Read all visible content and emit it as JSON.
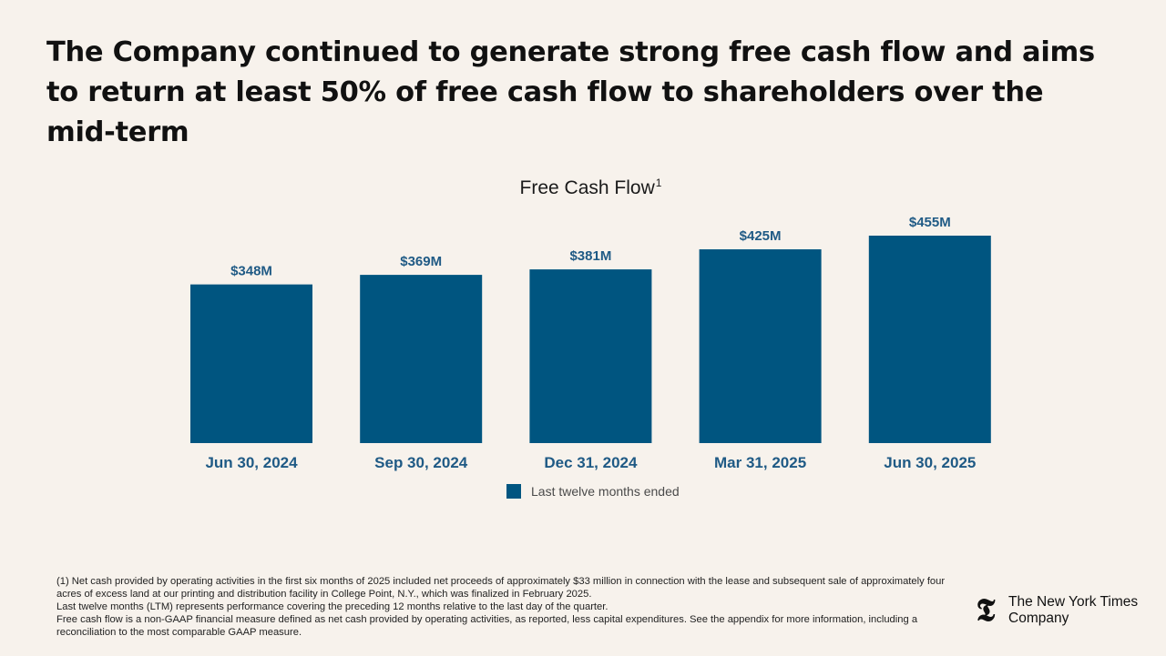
{
  "slide": {
    "title": "The Company continued to generate strong free cash flow and aims to return at least 50% of free cash flow to shareholders over the mid-term"
  },
  "chart_data": {
    "type": "bar",
    "title": "Free Cash Flow",
    "title_superscript": "1",
    "categories": [
      "Jun 30, 2024",
      "Sep 30, 2024",
      "Dec 31, 2024",
      "Mar 31, 2025",
      "Jun 30, 2025"
    ],
    "series": [
      {
        "name": "Last twelve months ended",
        "values": [
          348,
          369,
          381,
          425,
          455
        ],
        "labels": [
          "$348M",
          "$369M",
          "$381M",
          "$425M",
          "$455M"
        ],
        "color": "#005580"
      }
    ],
    "unit": "$M",
    "ylim": [
      0,
      455
    ],
    "grid": false,
    "legend_position": "bottom-center"
  },
  "footnotes": [
    "(1) Net cash provided by operating activities in the first six months of 2025 included net proceeds of approximately $33 million in connection with the lease and subsequent sale of approximately four acres of excess land at our printing and distribution facility in College Point, N.Y., which was finalized in February 2025.",
    "Last twelve months (LTM) represents performance covering the preceding 12 months relative to the last day of the quarter.",
    "Free cash flow is a non-GAAP financial measure defined as net cash provided by operating activities, as reported, less capital expenditures. See the appendix for more information, including a reconciliation to the most comparable GAAP measure."
  ],
  "logo": {
    "mark": "𝕿",
    "line1": "The New York Times",
    "line2": "Company"
  },
  "colors": {
    "background": "#f7f2ec",
    "bar": "#005580",
    "label": "#1f5a85"
  }
}
